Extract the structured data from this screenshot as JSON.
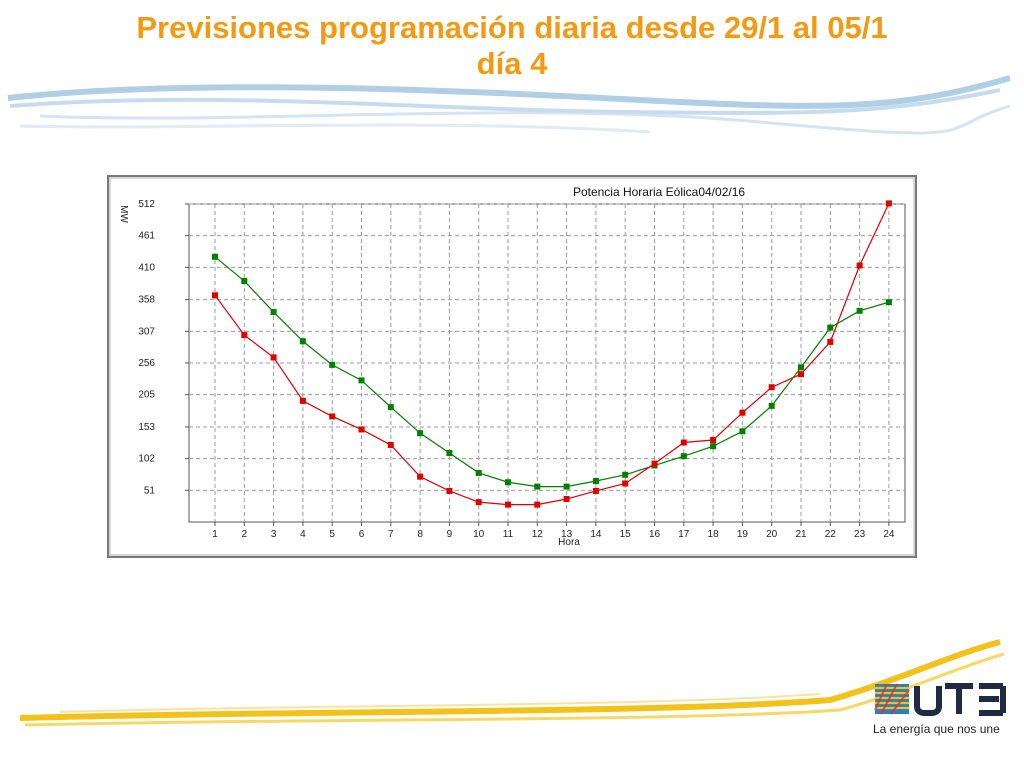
{
  "slide": {
    "title_line1": "Previsiones programación diaria desde 29/1 al 05/1",
    "title_line2": "día 4"
  },
  "brand": {
    "logo_text": "UTE",
    "tagline": "La energía que nos une",
    "title_color": "#f39a12",
    "accent_blue": "#2a7fc0",
    "accent_yellow": "#f2c21b"
  },
  "chart_data": {
    "type": "line",
    "title": "Potencia Horaria Eólica04/02/16",
    "xlabel": "Hora",
    "ylabel": "MW",
    "categories": [
      "1",
      "2",
      "3",
      "4",
      "5",
      "6",
      "7",
      "8",
      "9",
      "10",
      "11",
      "12",
      "13",
      "14",
      "15",
      "16",
      "17",
      "18",
      "19",
      "20",
      "21",
      "22",
      "23",
      "24"
    ],
    "yticks": [
      51,
      102,
      153,
      205,
      256,
      307,
      358,
      410,
      461,
      512
    ],
    "ylim": [
      0,
      512
    ],
    "grid": true,
    "series": [
      {
        "color": "#008000",
        "values": [
          427,
          388,
          338,
          291,
          253,
          228,
          185,
          143,
          111,
          79,
          64,
          57,
          57,
          66,
          76,
          91,
          106,
          122,
          146,
          187,
          249,
          313,
          340,
          354
        ]
      },
      {
        "color": "#e00000",
        "values": [
          365,
          301,
          265,
          195,
          170,
          149,
          124,
          73,
          50,
          32,
          28,
          28,
          37,
          50,
          62,
          94,
          128,
          132,
          176,
          217,
          238,
          290,
          413,
          513
        ]
      }
    ]
  }
}
